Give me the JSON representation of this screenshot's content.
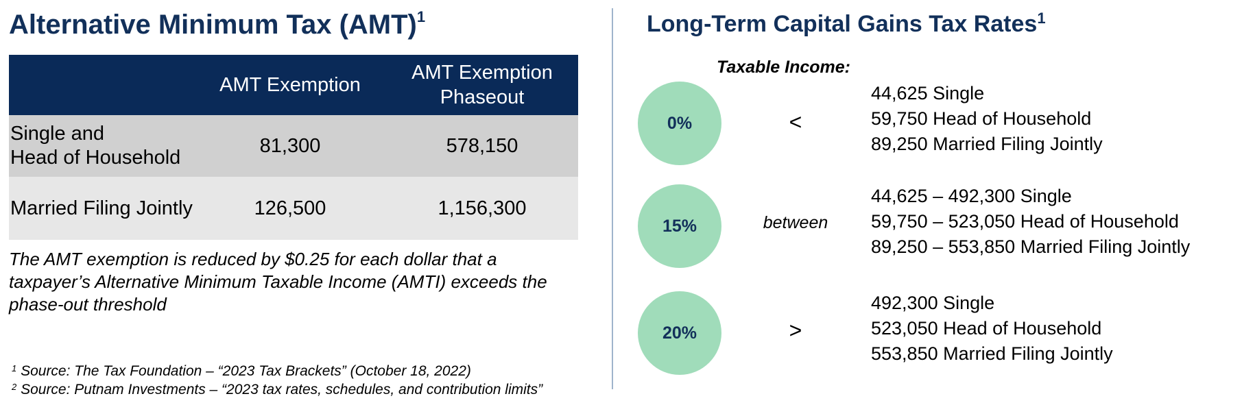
{
  "amt": {
    "title": "Alternative Minimum Tax (AMT)",
    "title_sup": "1",
    "columns": [
      "",
      "AMT Exemption",
      "AMT Exemption",
      "Phaseout"
    ],
    "rows": [
      {
        "label_line1": "Single and",
        "label_line2": "Head of Household",
        "exemption": "81,300",
        "phaseout": "578,150"
      },
      {
        "label_line1": "Married Filing Jointly",
        "exemption": "126,500",
        "phaseout": "1,156,300"
      }
    ],
    "note": "The AMT exemption is reduced by $0.25 for each dollar that a taxpayer’s Alternative Minimum Taxable Income (AMTI) exceeds the phase-out threshold",
    "sources": [
      {
        "sup": "1",
        "text": "Source: The Tax Foundation – “2023 Tax Brackets” (October 18, 2022)"
      },
      {
        "sup": "2",
        "text": "Source: Putnam Investments – “2023 tax rates, schedules, and contribution limits”"
      }
    ]
  },
  "ltcg": {
    "title": "Long-Term Capital Gains Tax Rates",
    "title_sup": "1",
    "taxable_income_label": "Taxable Income:",
    "brackets": [
      {
        "rate": "0%",
        "comparator": "<",
        "lines": [
          "44,625 Single",
          "59,750 Head of Household",
          "89,250 Married Filing Jointly"
        ]
      },
      {
        "rate": "15%",
        "comparator": "between",
        "lines": [
          "44,625 – 492,300 Single",
          "59,750 – 523,050 Head of Household",
          "89,250 – 553,850 Married Filing Jointly"
        ]
      },
      {
        "rate": "20%",
        "comparator": ">",
        "lines": [
          "492,300 Single",
          "523,050 Head of Household",
          "553,850 Married Filing Jointly"
        ]
      }
    ]
  },
  "colors": {
    "navy": "#0a2a58",
    "title": "#12305a",
    "circle": "#a0dcba",
    "row1": "#d0d0d0",
    "row2": "#e7e7e7",
    "divider": "#9fb4cc"
  }
}
